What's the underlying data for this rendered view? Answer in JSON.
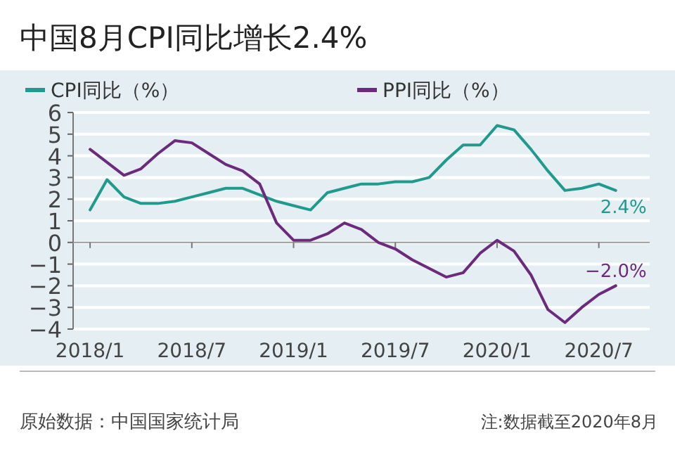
{
  "chart_data": {
    "type": "line",
    "title": "中国8月CPI同比增长2.4%",
    "x": [
      "2018-01",
      "2018-02",
      "2018-03",
      "2018-04",
      "2018-05",
      "2018-06",
      "2018-07",
      "2018-08",
      "2018-09",
      "2018-10",
      "2018-11",
      "2018-12",
      "2019-01",
      "2019-02",
      "2019-03",
      "2019-04",
      "2019-05",
      "2019-06",
      "2019-07",
      "2019-08",
      "2019-09",
      "2019-10",
      "2019-11",
      "2019-12",
      "2020-01",
      "2020-02",
      "2020-03",
      "2020-04",
      "2020-05",
      "2020-06",
      "2020-07",
      "2020-08"
    ],
    "series": [
      {
        "name": "CPI同比（%）",
        "color": "#1f9a8c",
        "values": [
          1.5,
          2.9,
          2.1,
          1.8,
          1.8,
          1.9,
          2.1,
          2.3,
          2.5,
          2.5,
          2.2,
          1.9,
          1.7,
          1.5,
          2.3,
          2.5,
          2.7,
          2.7,
          2.8,
          2.8,
          3.0,
          3.8,
          4.5,
          4.5,
          5.4,
          5.2,
          4.3,
          3.3,
          2.4,
          2.5,
          2.7,
          2.4
        ]
      },
      {
        "name": "PPI同比（%）",
        "color": "#6c2a7c",
        "values": [
          4.3,
          3.7,
          3.1,
          3.4,
          4.1,
          4.7,
          4.6,
          4.1,
          3.6,
          3.3,
          2.7,
          0.9,
          0.1,
          0.1,
          0.4,
          0.9,
          0.6,
          0.0,
          -0.3,
          -0.8,
          -1.2,
          -1.6,
          -1.4,
          -0.5,
          0.1,
          -0.4,
          -1.5,
          -3.1,
          -3.7,
          -3.0,
          -2.4,
          -2.0
        ]
      }
    ],
    "xlim": [
      "2017-12",
      "2020-10"
    ],
    "xticks": [
      {
        "value": "2018-01",
        "label": "2018/1"
      },
      {
        "value": "2018-07",
        "label": "2018/7"
      },
      {
        "value": "2019-01",
        "label": "2019/1"
      },
      {
        "value": "2019-07",
        "label": "2019/7"
      },
      {
        "value": "2020-01",
        "label": "2020/1"
      },
      {
        "value": "2020-07",
        "label": "2020/7"
      }
    ],
    "ylim": [
      -4,
      6
    ],
    "yticks": [
      {
        "value": -4,
        "label": "−4"
      },
      {
        "value": -3,
        "label": "−3"
      },
      {
        "value": -2,
        "label": "−2"
      },
      {
        "value": -1,
        "label": "−1"
      },
      0,
      1,
      2,
      3,
      4,
      5,
      6
    ],
    "grid": "y",
    "legend": "top",
    "annotations": [
      {
        "text": "2.4%",
        "x": "2020-08",
        "y": 2.4
      },
      {
        "text": "−2.0%",
        "x": "2020-08",
        "y": -2.0
      },
      "原始数据：中国国家统计局",
      "注:数据截至2020年8月"
    ]
  }
}
